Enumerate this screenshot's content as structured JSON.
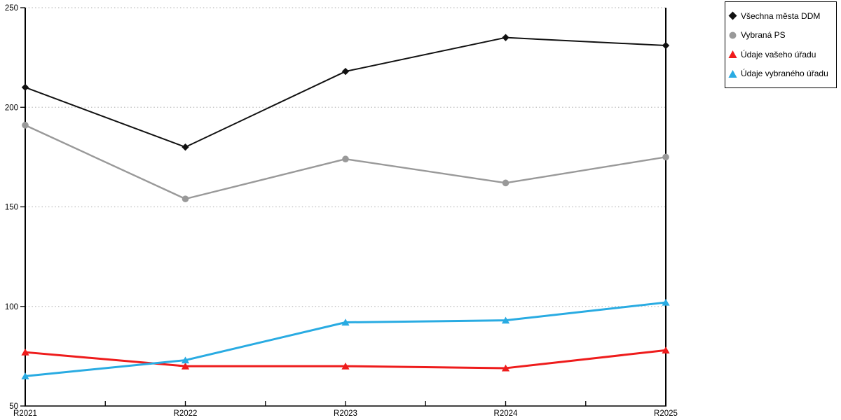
{
  "chart_data": {
    "type": "line",
    "categories": [
      "R2021",
      "R2022",
      "R2023",
      "R2024",
      "R2025"
    ],
    "series": [
      {
        "name": "Všechna města DDM",
        "marker": "diamond",
        "color": "#111111",
        "values": [
          210,
          180,
          218,
          235,
          231
        ]
      },
      {
        "name": "Vybraná PS",
        "marker": "circle",
        "color": "#999999",
        "values": [
          191,
          154,
          174,
          162,
          175
        ]
      },
      {
        "name": "Údaje vašeho úřadu",
        "marker": "triangle",
        "color": "#ee1c1c",
        "values": [
          77,
          70,
          70,
          69,
          78
        ]
      },
      {
        "name": "Údaje vybraného úřadu",
        "marker": "triangle",
        "color": "#29abe2",
        "values": [
          65,
          73,
          92,
          93,
          102
        ]
      }
    ],
    "title": "",
    "xlabel": "",
    "ylabel": "",
    "ylim": [
      50,
      250
    ],
    "yticks": [
      50,
      100,
      150,
      200,
      250
    ],
    "grid": "horizontal-dotted",
    "legend_position": "top-right",
    "axis_color": "#000000",
    "gridline_color": "#bdbdbd",
    "tick_label_color": "#000000"
  }
}
